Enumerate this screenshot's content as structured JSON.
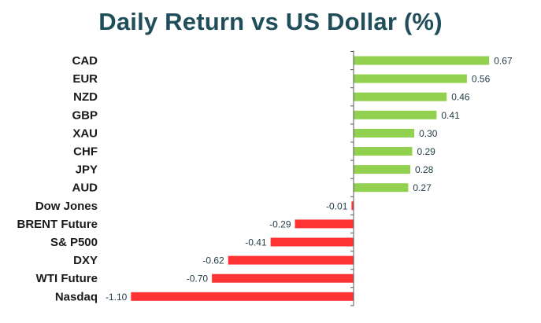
{
  "chart_data": {
    "type": "bar",
    "orientation": "horizontal",
    "title": "Daily Return vs US Dollar (%)",
    "categories": [
      "CAD",
      "EUR",
      "NZD",
      "GBP",
      "XAU",
      "CHF",
      "JPY",
      "AUD",
      "Dow Jones",
      "BRENT Future",
      "S& P500",
      "DXY",
      "WTI Future",
      "Nasdaq"
    ],
    "values": [
      0.67,
      0.56,
      0.46,
      0.41,
      0.3,
      0.29,
      0.28,
      0.27,
      -0.01,
      -0.29,
      -0.41,
      -0.62,
      -0.7,
      -1.1
    ],
    "value_labels": [
      "0.67",
      "0.56",
      "0.46",
      "0.41",
      "0.30",
      "0.29",
      "0.28",
      "0.27",
      "-0.01",
      "-0.29",
      "-0.41",
      "-0.62",
      "-0.70",
      "-1.10"
    ],
    "xlabel": "",
    "ylabel": "",
    "xlim": [
      -1.1,
      0.67
    ],
    "grid": false,
    "legend": "none",
    "colors": {
      "positive": "#92d050",
      "negative": "#ff3333",
      "axis": "#595959",
      "title": "#1f4e5a"
    }
  }
}
